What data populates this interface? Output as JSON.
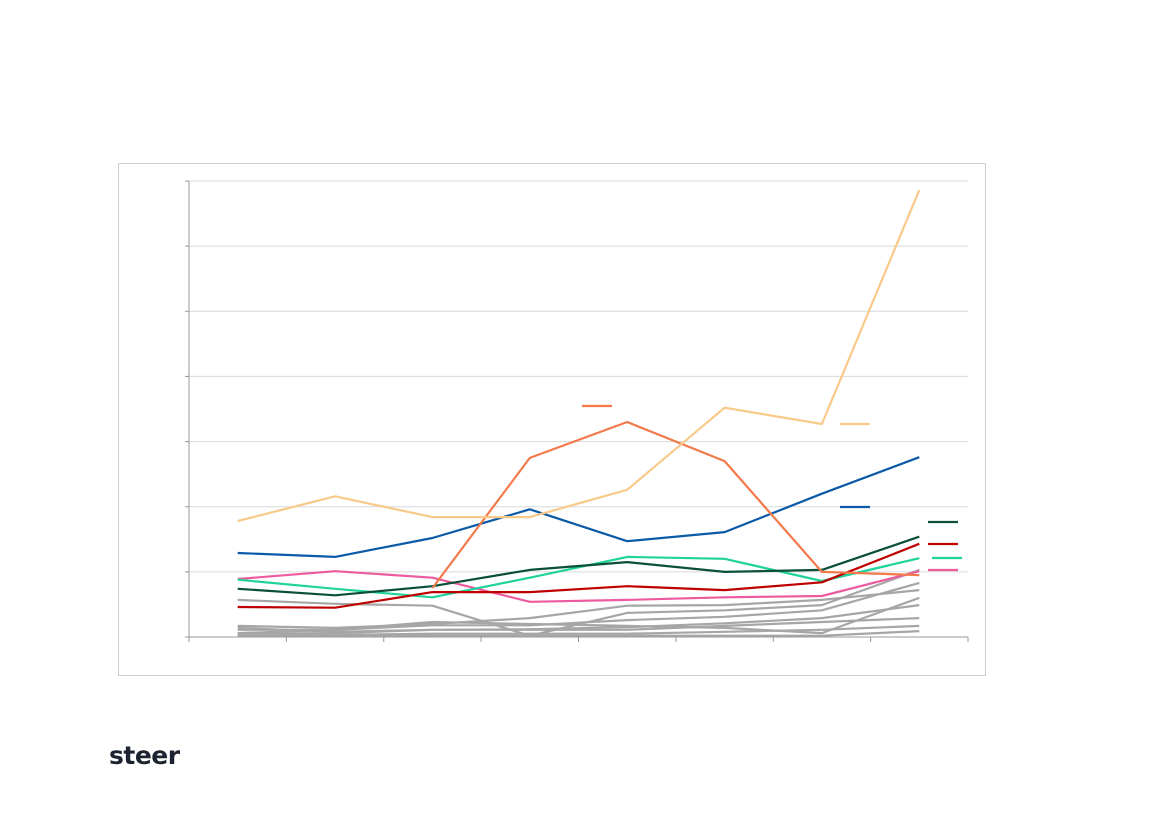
{
  "logo": "steer",
  "chart_data": {
    "type": "line",
    "categories": [
      null,
      null,
      null,
      null,
      null,
      null,
      null,
      null
    ],
    "ylim": [
      0,
      7
    ],
    "yticks": [
      0,
      1,
      2,
      3,
      4,
      5,
      6,
      7
    ],
    "grid": true,
    "series": [
      {
        "color": "#a6a6a6",
        "values": [
          0.57,
          0.51,
          0.48,
          0.02,
          0.37,
          0.41,
          0.49,
          1.03
        ]
      },
      {
        "color": "#a6a6a6",
        "values": [
          0.17,
          0.14,
          0.2,
          0.29,
          0.48,
          0.49,
          0.57,
          0.72
        ]
      },
      {
        "color": "#a6a6a6",
        "values": [
          0.11,
          0.11,
          0.18,
          0.18,
          0.26,
          0.31,
          0.41,
          0.83
        ]
      },
      {
        "color": "#a6a6a6",
        "values": [
          0.06,
          0.11,
          0.23,
          0.2,
          0.17,
          0.14,
          0.06,
          0.6
        ]
      },
      {
        "color": "#a6a6a6",
        "values": [
          0.05,
          0.06,
          0.11,
          0.11,
          0.11,
          0.17,
          0.23,
          0.29
        ]
      },
      {
        "color": "#a6a6a6",
        "values": [
          0.03,
          0.03,
          0.05,
          0.05,
          0.05,
          0.08,
          0.11,
          0.17
        ]
      },
      {
        "color": "#a6a6a6",
        "values": [
          0.02,
          0.02,
          0.02,
          0.02,
          0.02,
          0.02,
          0.02,
          0.09
        ]
      },
      {
        "color": "#a6a6a6",
        "values": [
          0.14,
          0.08,
          0.11,
          0.12,
          0.15,
          0.21,
          0.29,
          0.49
        ]
      },
      {
        "color": "#ec5ba0",
        "values": [
          0.89,
          1.01,
          0.91,
          0.54,
          0.57,
          0.61,
          0.63,
          1.01
        ]
      },
      {
        "color": "#1fd39a",
        "values": [
          0.88,
          0.74,
          0.61,
          0.91,
          1.23,
          1.2,
          0.86,
          1.21
        ]
      },
      {
        "color": "#c00000",
        "values": [
          0.46,
          0.45,
          0.69,
          0.69,
          0.78,
          0.72,
          0.84,
          1.43
        ]
      },
      {
        "color": "#0b4f37",
        "values": [
          0.74,
          0.64,
          0.78,
          1.03,
          1.15,
          1.0,
          1.03,
          1.54
        ]
      },
      {
        "color": "#0b5aa8",
        "values": [
          1.29,
          1.23,
          1.52,
          1.96,
          1.47,
          1.61,
          2.2,
          2.76
        ]
      },
      {
        "color": "#f4794a",
        "values": [
          null,
          null,
          0.75,
          2.75,
          3.3,
          2.7,
          1.0,
          0.95
        ]
      },
      {
        "color": "#f9c98a",
        "values": [
          1.78,
          2.16,
          1.84,
          1.84,
          2.26,
          3.52,
          3.27,
          6.86
        ]
      }
    ]
  }
}
